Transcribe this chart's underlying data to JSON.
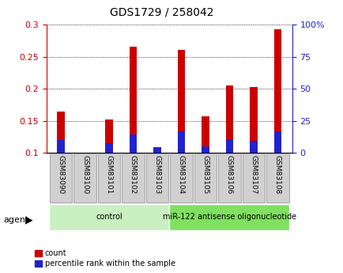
{
  "title": "GDS1729 / 258042",
  "samples": [
    "GSM83090",
    "GSM83100",
    "GSM83101",
    "GSM83102",
    "GSM83103",
    "GSM83104",
    "GSM83105",
    "GSM83106",
    "GSM83107",
    "GSM83108"
  ],
  "red_values": [
    0.165,
    0.1,
    0.152,
    0.265,
    0.101,
    0.26,
    0.157,
    0.205,
    0.203,
    0.293
  ],
  "blue_values": [
    0.12,
    0.1,
    0.115,
    0.128,
    0.109,
    0.133,
    0.11,
    0.121,
    0.119,
    0.133
  ],
  "ylim_left": [
    0.1,
    0.3
  ],
  "ylim_right": [
    0,
    100
  ],
  "yticks_left": [
    0.1,
    0.15,
    0.2,
    0.25,
    0.3
  ],
  "ytick_labels_left": [
    "0.1",
    "0.15",
    "0.2",
    "0.25",
    "0.3"
  ],
  "yticks_right": [
    0,
    25,
    50,
    75,
    100
  ],
  "ytick_labels_right": [
    "0",
    "25",
    "50",
    "75",
    "100%"
  ],
  "groups": [
    {
      "label": "control",
      "start": 0,
      "end": 5,
      "color": "#c8f0c0"
    },
    {
      "label": "miR-122 antisense oligonucleotide",
      "start": 5,
      "end": 10,
      "color": "#80e060"
    }
  ],
  "group_row_label": "agent",
  "bar_color_red": "#cc0000",
  "bar_color_blue": "#2222cc",
  "bar_width": 0.3,
  "legend_items": [
    {
      "label": "count",
      "color": "#cc0000"
    },
    {
      "label": "percentile rank within the sample",
      "color": "#2222cc"
    }
  ],
  "title_color": "#000000",
  "left_axis_color": "#cc0000",
  "right_axis_color": "#2222cc",
  "sample_box_color": "#d0d0d0",
  "sample_box_edge": "#aaaaaa"
}
